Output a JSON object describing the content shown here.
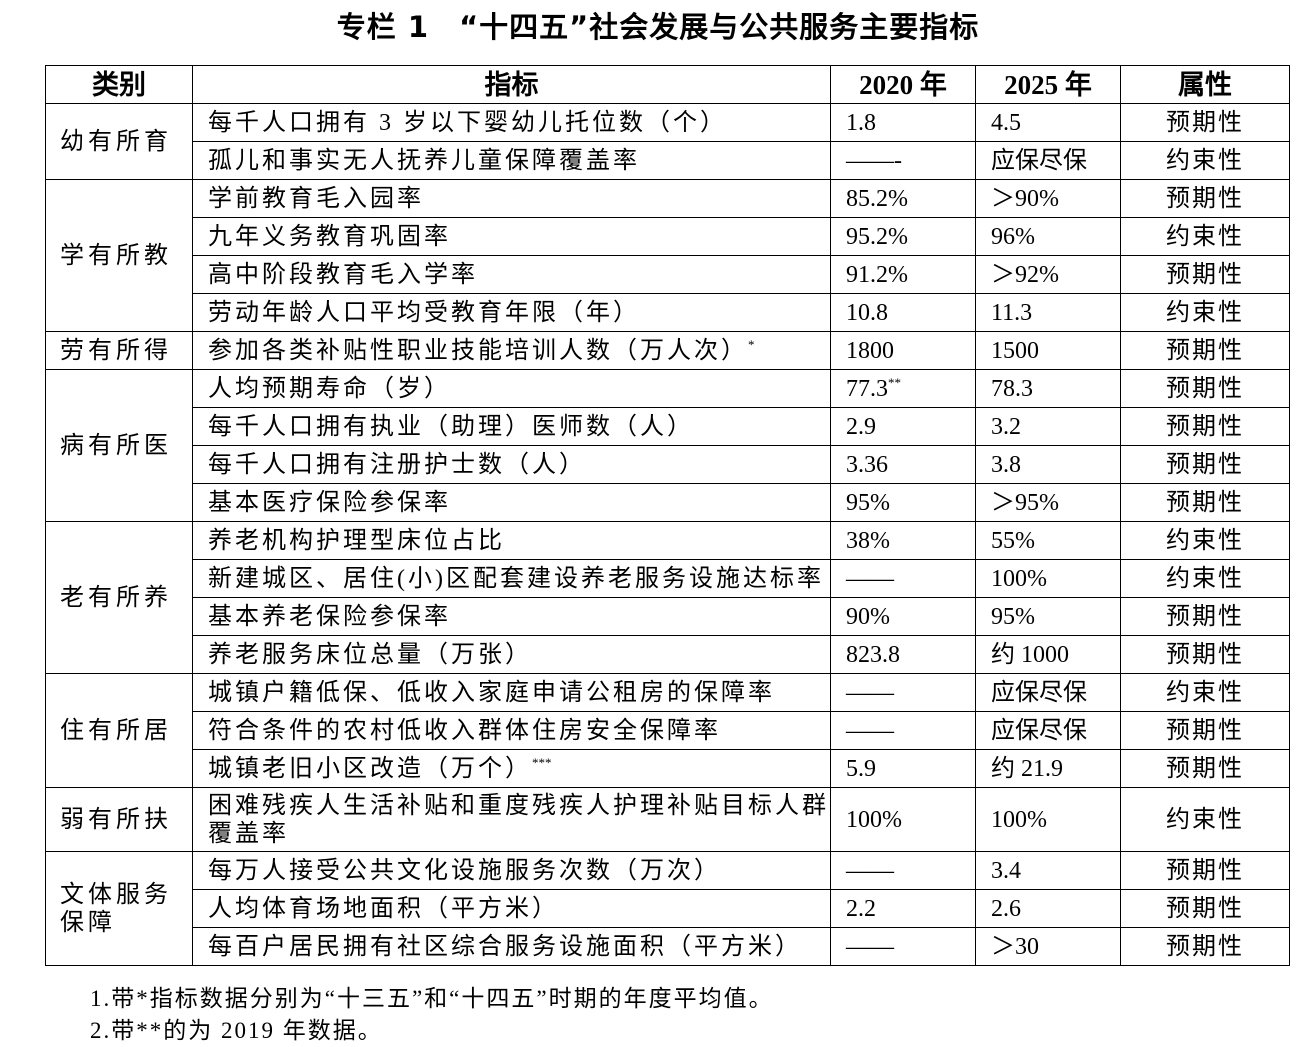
{
  "title": "专栏 1　“十四五”社会发展与公共服务主要指标",
  "headers": [
    "类别",
    "指标",
    "2020 年",
    "2025 年",
    "属性"
  ],
  "groups": [
    {
      "category": "幼有所育",
      "rows": [
        {
          "indicator": "每千人口拥有 3 岁以下婴幼儿托位数（个）",
          "y2020": "1.8",
          "y2025": "4.5",
          "attr": "预期性"
        },
        {
          "indicator": "孤儿和事实无人抚养儿童保障覆盖率",
          "y2020": "——-",
          "y2025": "应保尽保",
          "attr": "约束性"
        }
      ]
    },
    {
      "category": "学有所教",
      "rows": [
        {
          "indicator": "学前教育毛入园率",
          "y2020": "85.2%",
          "y2025": "＞90%",
          "attr": "预期性"
        },
        {
          "indicator": "九年义务教育巩固率",
          "y2020": "95.2%",
          "y2025": "96%",
          "attr": "约束性"
        },
        {
          "indicator": "高中阶段教育毛入学率",
          "y2020": "91.2%",
          "y2025": "＞92%",
          "attr": "预期性"
        },
        {
          "indicator": "劳动年龄人口平均受教育年限（年）",
          "y2020": "10.8",
          "y2025": "11.3",
          "attr": "约束性"
        }
      ]
    },
    {
      "category": "劳有所得",
      "rows": [
        {
          "indicator": "参加各类补贴性职业技能培训人数（万人次）",
          "indicator_note": "*",
          "y2020": "1800",
          "y2025": "1500",
          "attr": "预期性"
        }
      ]
    },
    {
      "category": "病有所医",
      "rows": [
        {
          "indicator": "人均预期寿命（岁）",
          "y2020": "77.3",
          "y2020_note": "**",
          "y2025": "78.3",
          "attr": "预期性"
        },
        {
          "indicator": "每千人口拥有执业（助理）医师数（人）",
          "y2020": "2.9",
          "y2025": "3.2",
          "attr": "预期性"
        },
        {
          "indicator": "每千人口拥有注册护士数（人）",
          "y2020": "3.36",
          "y2025": "3.8",
          "attr": "预期性"
        },
        {
          "indicator": "基本医疗保险参保率",
          "y2020": "95%",
          "y2025": "＞95%",
          "attr": "预期性"
        }
      ]
    },
    {
      "category": "老有所养",
      "rows": [
        {
          "indicator": "养老机构护理型床位占比",
          "y2020": "38%",
          "y2025": "55%",
          "attr": "约束性"
        },
        {
          "indicator": "新建城区、居住(小)区配套建设养老服务设施达标率",
          "y2020": "——",
          "y2025": "100%",
          "attr": "约束性"
        },
        {
          "indicator": "基本养老保险参保率",
          "y2020": "90%",
          "y2025": "95%",
          "attr": "预期性"
        },
        {
          "indicator": "养老服务床位总量（万张）",
          "y2020": "823.8",
          "y2025": "约 1000",
          "attr": "预期性"
        }
      ]
    },
    {
      "category": "住有所居",
      "rows": [
        {
          "indicator": "城镇户籍低保、低收入家庭申请公租房的保障率",
          "y2020": "——",
          "y2025": "应保尽保",
          "attr": "约束性"
        },
        {
          "indicator": "符合条件的农村低收入群体住房安全保障率",
          "y2020": "——",
          "y2025": "应保尽保",
          "attr": "预期性"
        },
        {
          "indicator": "城镇老旧小区改造（万个）",
          "indicator_note": "***",
          "y2020": "5.9",
          "y2025": "约 21.9",
          "attr": "预期性"
        }
      ]
    },
    {
      "category": "弱有所扶",
      "rows": [
        {
          "indicator": "困难残疾人生活补贴和重度残疾人护理补贴目标人群覆盖率",
          "y2020": "100%",
          "y2025": "100%",
          "attr": "约束性",
          "tall": true
        }
      ]
    },
    {
      "category": "文体服务保障",
      "rows": [
        {
          "indicator": "每万人接受公共文化设施服务次数（万次）",
          "y2020": "——",
          "y2025": "3.4",
          "attr": "预期性"
        },
        {
          "indicator": "人均体育场地面积（平方米）",
          "y2020": "2.2",
          "y2025": "2.6",
          "attr": "预期性"
        },
        {
          "indicator": "每百户居民拥有社区综合服务设施面积（平方米）",
          "y2020": "——",
          "y2025": "＞30",
          "attr": "预期性"
        }
      ]
    }
  ],
  "notes": [
    "1.带*指标数据分别为“十三五”和“十四五”时期的年度平均值。",
    "2.带**的为 2019 年数据。"
  ]
}
